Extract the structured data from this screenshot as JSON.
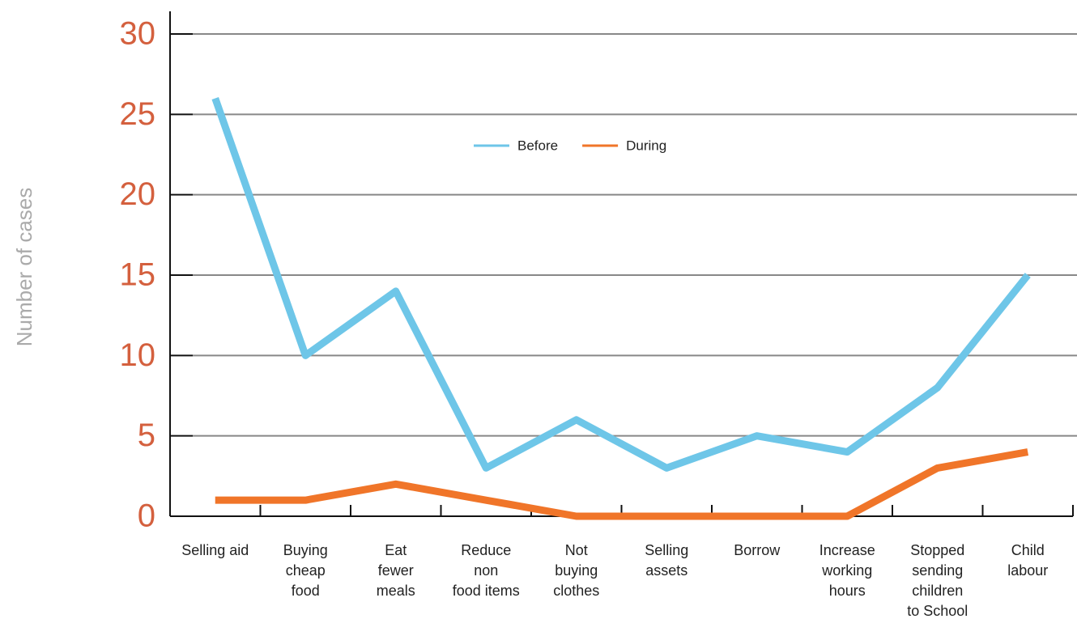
{
  "chart_data": {
    "type": "line",
    "categories": [
      "Selling aid",
      "Buying\ncheap\nfood",
      "Eat\nfewer\nmeals",
      "Reduce\nnon\nfood items",
      "Not\nbuying\nclothes",
      "Selling\nassets",
      "Borrow",
      "Increase\nworking\nhours",
      "Stopped\nsending\nchildren\nto School",
      "Child\nlabour"
    ],
    "series": [
      {
        "name": "Before",
        "color": "#6ec6e8",
        "values": [
          26,
          10,
          14,
          3,
          6,
          3,
          5,
          4,
          8,
          15
        ]
      },
      {
        "name": "During",
        "color": "#f07529",
        "values": [
          1,
          1,
          2,
          1,
          0,
          0,
          0,
          0,
          3,
          4
        ]
      }
    ],
    "y_label": "Number of cases",
    "ylim": [
      0,
      30
    ],
    "yticks": [
      0,
      5,
      10,
      15,
      20,
      25,
      30
    ],
    "grid": true,
    "legend": "upper center"
  }
}
